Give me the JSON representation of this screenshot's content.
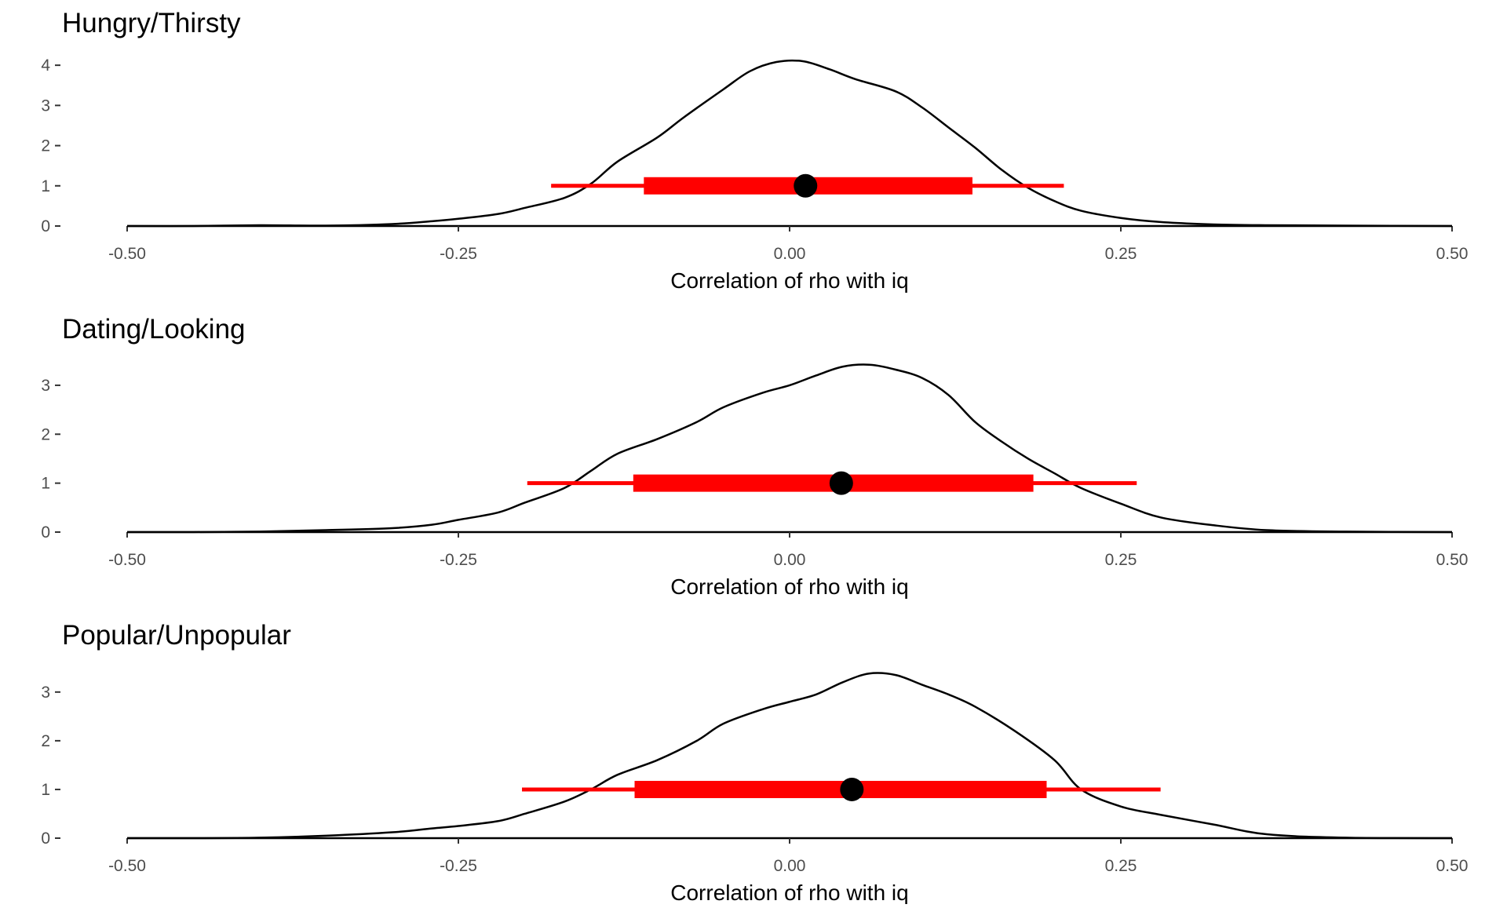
{
  "chart_data": [
    {
      "type": "area",
      "title": "Hungry/Thirsty",
      "xlabel": "Correlation of rho with iq",
      "ylabel": "",
      "xlim": [
        -0.5,
        0.5
      ],
      "ylim": [
        0,
        4.1
      ],
      "x_ticks": [
        "-0.50",
        "-0.25",
        "0.00",
        "0.25",
        "0.50"
      ],
      "y_ticks": [
        "0",
        "1",
        "2",
        "3",
        "4"
      ],
      "grid": false,
      "series": [
        {
          "values": [
            [
              -0.5,
              0.0
            ],
            [
              -0.45,
              0.0
            ],
            [
              -0.4,
              0.02
            ],
            [
              -0.35,
              0.01
            ],
            [
              -0.3,
              0.05
            ],
            [
              -0.27,
              0.12
            ],
            [
              -0.25,
              0.18
            ],
            [
              -0.22,
              0.3
            ],
            [
              -0.2,
              0.45
            ],
            [
              -0.17,
              0.7
            ],
            [
              -0.15,
              1.05
            ],
            [
              -0.13,
              1.6
            ],
            [
              -0.1,
              2.2
            ],
            [
              -0.08,
              2.7
            ],
            [
              -0.05,
              3.4
            ],
            [
              -0.03,
              3.85
            ],
            [
              -0.01,
              4.08
            ],
            [
              0.01,
              4.1
            ],
            [
              0.03,
              3.9
            ],
            [
              0.05,
              3.65
            ],
            [
              0.08,
              3.35
            ],
            [
              0.1,
              2.95
            ],
            [
              0.12,
              2.45
            ],
            [
              0.14,
              1.95
            ],
            [
              0.16,
              1.4
            ],
            [
              0.18,
              0.95
            ],
            [
              0.2,
              0.62
            ],
            [
              0.22,
              0.38
            ],
            [
              0.25,
              0.2
            ],
            [
              0.28,
              0.1
            ],
            [
              0.32,
              0.04
            ],
            [
              0.36,
              0.02
            ],
            [
              0.42,
              0.01
            ],
            [
              0.5,
              0.0
            ]
          ]
        }
      ],
      "interval": {
        "point": 0.012,
        "inner": [
          -0.11,
          0.138
        ],
        "outer": [
          -0.18,
          0.207
        ],
        "y": 1
      },
      "colors": {
        "density": "#000000",
        "interval": "#ff0000",
        "point": "#000000"
      }
    },
    {
      "type": "area",
      "title": "Dating/Looking",
      "xlabel": "Correlation of rho with iq",
      "ylabel": "",
      "xlim": [
        -0.5,
        0.5
      ],
      "ylim": [
        0,
        3.4
      ],
      "x_ticks": [
        "-0.50",
        "-0.25",
        "0.00",
        "0.25",
        "0.50"
      ],
      "y_ticks": [
        "0",
        "1",
        "2",
        "3"
      ],
      "grid": false,
      "series": [
        {
          "values": [
            [
              -0.5,
              0.0
            ],
            [
              -0.45,
              0.0
            ],
            [
              -0.4,
              0.01
            ],
            [
              -0.35,
              0.04
            ],
            [
              -0.3,
              0.08
            ],
            [
              -0.27,
              0.15
            ],
            [
              -0.25,
              0.25
            ],
            [
              -0.22,
              0.4
            ],
            [
              -0.2,
              0.6
            ],
            [
              -0.17,
              0.9
            ],
            [
              -0.15,
              1.25
            ],
            [
              -0.13,
              1.6
            ],
            [
              -0.1,
              1.9
            ],
            [
              -0.07,
              2.25
            ],
            [
              -0.05,
              2.55
            ],
            [
              -0.02,
              2.85
            ],
            [
              0.0,
              3.0
            ],
            [
              0.02,
              3.2
            ],
            [
              0.04,
              3.38
            ],
            [
              0.06,
              3.42
            ],
            [
              0.08,
              3.32
            ],
            [
              0.1,
              3.15
            ],
            [
              0.12,
              2.8
            ],
            [
              0.14,
              2.25
            ],
            [
              0.16,
              1.85
            ],
            [
              0.18,
              1.5
            ],
            [
              0.2,
              1.2
            ],
            [
              0.22,
              0.9
            ],
            [
              0.25,
              0.58
            ],
            [
              0.28,
              0.3
            ],
            [
              0.32,
              0.14
            ],
            [
              0.36,
              0.04
            ],
            [
              0.42,
              0.01
            ],
            [
              0.5,
              0.0
            ]
          ]
        }
      ],
      "interval": {
        "point": 0.039,
        "inner": [
          -0.118,
          0.184
        ],
        "outer": [
          -0.198,
          0.262
        ],
        "y": 1
      },
      "colors": {
        "density": "#000000",
        "interval": "#ff0000",
        "point": "#000000"
      }
    },
    {
      "type": "area",
      "title": "Popular/Unpopular",
      "xlabel": "Correlation of rho with iq",
      "ylabel": "",
      "xlim": [
        -0.5,
        0.5
      ],
      "ylim": [
        0,
        3.4
      ],
      "x_ticks": [
        "-0.50",
        "-0.25",
        "0.00",
        "0.25",
        "0.50"
      ],
      "y_ticks": [
        "0",
        "1",
        "2",
        "3"
      ],
      "grid": false,
      "series": [
        {
          "values": [
            [
              -0.5,
              0.0
            ],
            [
              -0.45,
              0.0
            ],
            [
              -0.4,
              0.01
            ],
            [
              -0.35,
              0.05
            ],
            [
              -0.3,
              0.12
            ],
            [
              -0.27,
              0.2
            ],
            [
              -0.25,
              0.25
            ],
            [
              -0.22,
              0.35
            ],
            [
              -0.2,
              0.5
            ],
            [
              -0.17,
              0.75
            ],
            [
              -0.15,
              1.0
            ],
            [
              -0.13,
              1.3
            ],
            [
              -0.1,
              1.6
            ],
            [
              -0.07,
              2.0
            ],
            [
              -0.05,
              2.35
            ],
            [
              -0.02,
              2.65
            ],
            [
              0.0,
              2.8
            ],
            [
              0.02,
              2.95
            ],
            [
              0.04,
              3.2
            ],
            [
              0.06,
              3.38
            ],
            [
              0.08,
              3.35
            ],
            [
              0.1,
              3.15
            ],
            [
              0.12,
              2.95
            ],
            [
              0.14,
              2.7
            ],
            [
              0.17,
              2.2
            ],
            [
              0.2,
              1.6
            ],
            [
              0.22,
              1.0
            ],
            [
              0.25,
              0.65
            ],
            [
              0.28,
              0.48
            ],
            [
              0.32,
              0.28
            ],
            [
              0.36,
              0.08
            ],
            [
              0.42,
              0.01
            ],
            [
              0.5,
              0.0
            ]
          ]
        }
      ],
      "interval": {
        "point": 0.047,
        "inner": [
          -0.117,
          0.194
        ],
        "outer": [
          -0.202,
          0.28
        ],
        "y": 1
      },
      "colors": {
        "density": "#000000",
        "interval": "#ff0000",
        "point": "#000000"
      }
    }
  ]
}
